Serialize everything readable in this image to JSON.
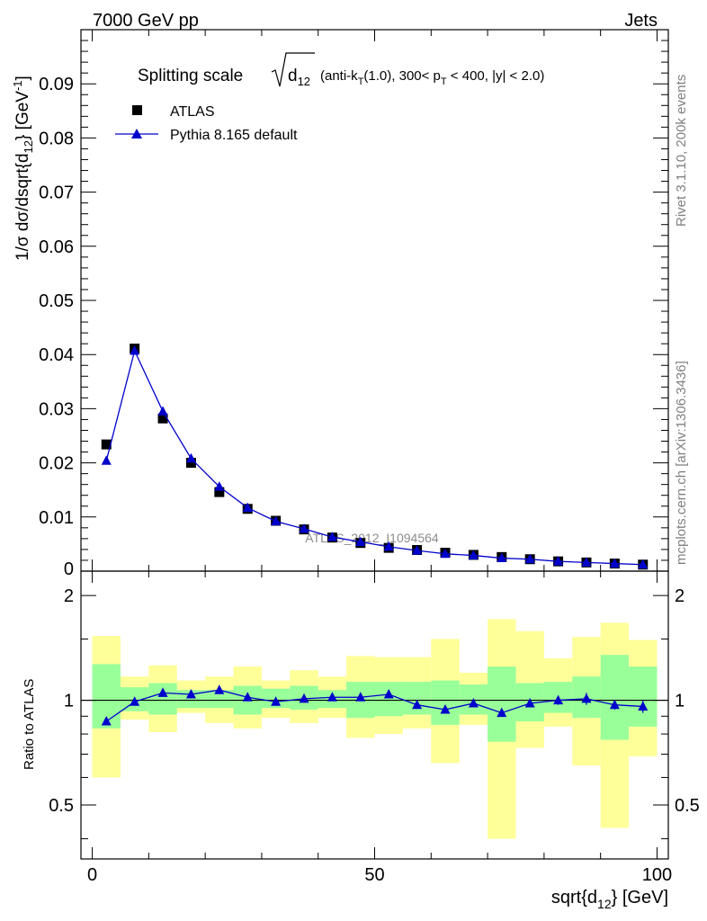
{
  "header": {
    "energy_label": "7000 GeV pp",
    "process_label": "Jets"
  },
  "side_labels": {
    "rivet": "Rivet 3.1.10,  200k events",
    "mcplots": "mcplots.cern.ch [arXiv:1306.3436]"
  },
  "chart_data": [
    {
      "type": "scatter",
      "panel": "main",
      "title": {
        "prefix": "Splitting scale",
        "sqrt_body": "d",
        "sqrt_sub": "12",
        "cuts_1": "(anti-k",
        "cuts_1_sub": "T",
        "cuts_2": "(1.0), 300< p",
        "cuts_2_sub": "T",
        "cuts_3": " < 400, |y| < 2.0)"
      },
      "ylabel": {
        "part1": "1/σ dσ/dsqrt{d",
        "sub": "12",
        "part2": "} [GeV",
        "sup": "-1",
        "part3": "]"
      },
      "xlim": [
        -2,
        102
      ],
      "ylim": [
        0,
        0.1
      ],
      "y_ticks": [
        "0",
        "0.01",
        "0.02",
        "0.03",
        "0.04",
        "0.05",
        "0.06",
        "0.07",
        "0.08",
        "0.09"
      ],
      "watermark": "ATLAS_2012_I1094564",
      "x": [
        2.5,
        7.5,
        12.5,
        17.5,
        22.5,
        27.5,
        32.5,
        37.5,
        42.5,
        47.5,
        52.5,
        57.5,
        62.5,
        67.5,
        72.5,
        77.5,
        82.5,
        87.5,
        92.5,
        97.5
      ],
      "series": [
        {
          "name": "ATLAS",
          "marker": "square",
          "color": "#000000",
          "values": [
            0.0234,
            0.0411,
            0.0282,
            0.02,
            0.0146,
            0.0115,
            0.0093,
            0.0077,
            0.0062,
            0.0052,
            0.0043,
            0.0039,
            0.0034,
            0.003,
            0.0026,
            0.0022,
            0.0018,
            0.0016,
            0.0014,
            0.0012
          ]
        },
        {
          "name": "Pythia 8.165 default",
          "marker": "triangle",
          "color": "#0000cc",
          "values": [
            0.0204,
            0.0407,
            0.0295,
            0.0208,
            0.0156,
            0.0117,
            0.0092,
            0.0078,
            0.0063,
            0.0054,
            0.0045,
            0.0038,
            0.0032,
            0.0029,
            0.0024,
            0.0022,
            0.0018,
            0.0016,
            0.0014,
            0.0012
          ]
        }
      ]
    },
    {
      "type": "scatter",
      "panel": "ratio",
      "ylabel": "Ratio to ATLAS",
      "xlabel": {
        "part1": "sqrt{d",
        "sub": "12",
        "part2": "} [GeV]"
      },
      "xlim": [
        -2,
        102
      ],
      "ylim": [
        0.35,
        2.35
      ],
      "x_ticks": [
        "0",
        "50",
        "100"
      ],
      "y_ticks": [
        "0.5",
        "1",
        "2"
      ],
      "reference": 1,
      "x": [
        2.5,
        7.5,
        12.5,
        17.5,
        22.5,
        27.5,
        32.5,
        37.5,
        42.5,
        47.5,
        52.5,
        57.5,
        62.5,
        67.5,
        72.5,
        77.5,
        82.5,
        87.5,
        92.5,
        97.5
      ],
      "bands": {
        "stat_color": "#99ff99",
        "total_color": "#ffff99",
        "stat_lo": [
          0.83,
          0.93,
          0.91,
          0.95,
          0.95,
          0.91,
          0.95,
          0.94,
          0.95,
          0.89,
          0.9,
          0.91,
          0.85,
          0.91,
          0.76,
          0.87,
          0.92,
          0.89,
          0.77,
          0.84
        ],
        "stat_hi": [
          1.27,
          1.09,
          1.12,
          1.07,
          1.07,
          1.1,
          1.08,
          1.1,
          1.07,
          1.13,
          1.13,
          1.13,
          1.14,
          1.11,
          1.25,
          1.12,
          1.13,
          1.17,
          1.35,
          1.25
        ],
        "tot_lo": [
          0.6,
          0.88,
          0.81,
          0.92,
          0.86,
          0.83,
          0.89,
          0.86,
          0.89,
          0.78,
          0.8,
          0.83,
          0.66,
          0.85,
          0.4,
          0.73,
          0.84,
          0.65,
          0.43,
          0.69
        ],
        "tot_hi": [
          1.53,
          1.17,
          1.26,
          1.14,
          1.17,
          1.25,
          1.14,
          1.22,
          1.17,
          1.34,
          1.33,
          1.33,
          1.5,
          1.2,
          1.71,
          1.58,
          1.32,
          1.52,
          1.67,
          1.49
        ]
      },
      "series": [
        {
          "name": "Pythia 8.165 default / ATLAS",
          "marker": "triangle",
          "color": "#0000cc",
          "values": [
            0.87,
            0.99,
            1.05,
            1.04,
            1.07,
            1.02,
            0.99,
            1.01,
            1.02,
            1.02,
            1.04,
            0.97,
            0.94,
            0.98,
            0.92,
            0.98,
            1.0,
            1.01,
            0.97,
            0.96
          ],
          "err": [
            0.0,
            0.0,
            0.0,
            0.0,
            0.0,
            0.0,
            0.0,
            0.0,
            0.0,
            0.0,
            0.0,
            0.0,
            0.0,
            0.0,
            0.0,
            0.0,
            0.03,
            0.04,
            0.03,
            0.04
          ]
        }
      ]
    }
  ]
}
